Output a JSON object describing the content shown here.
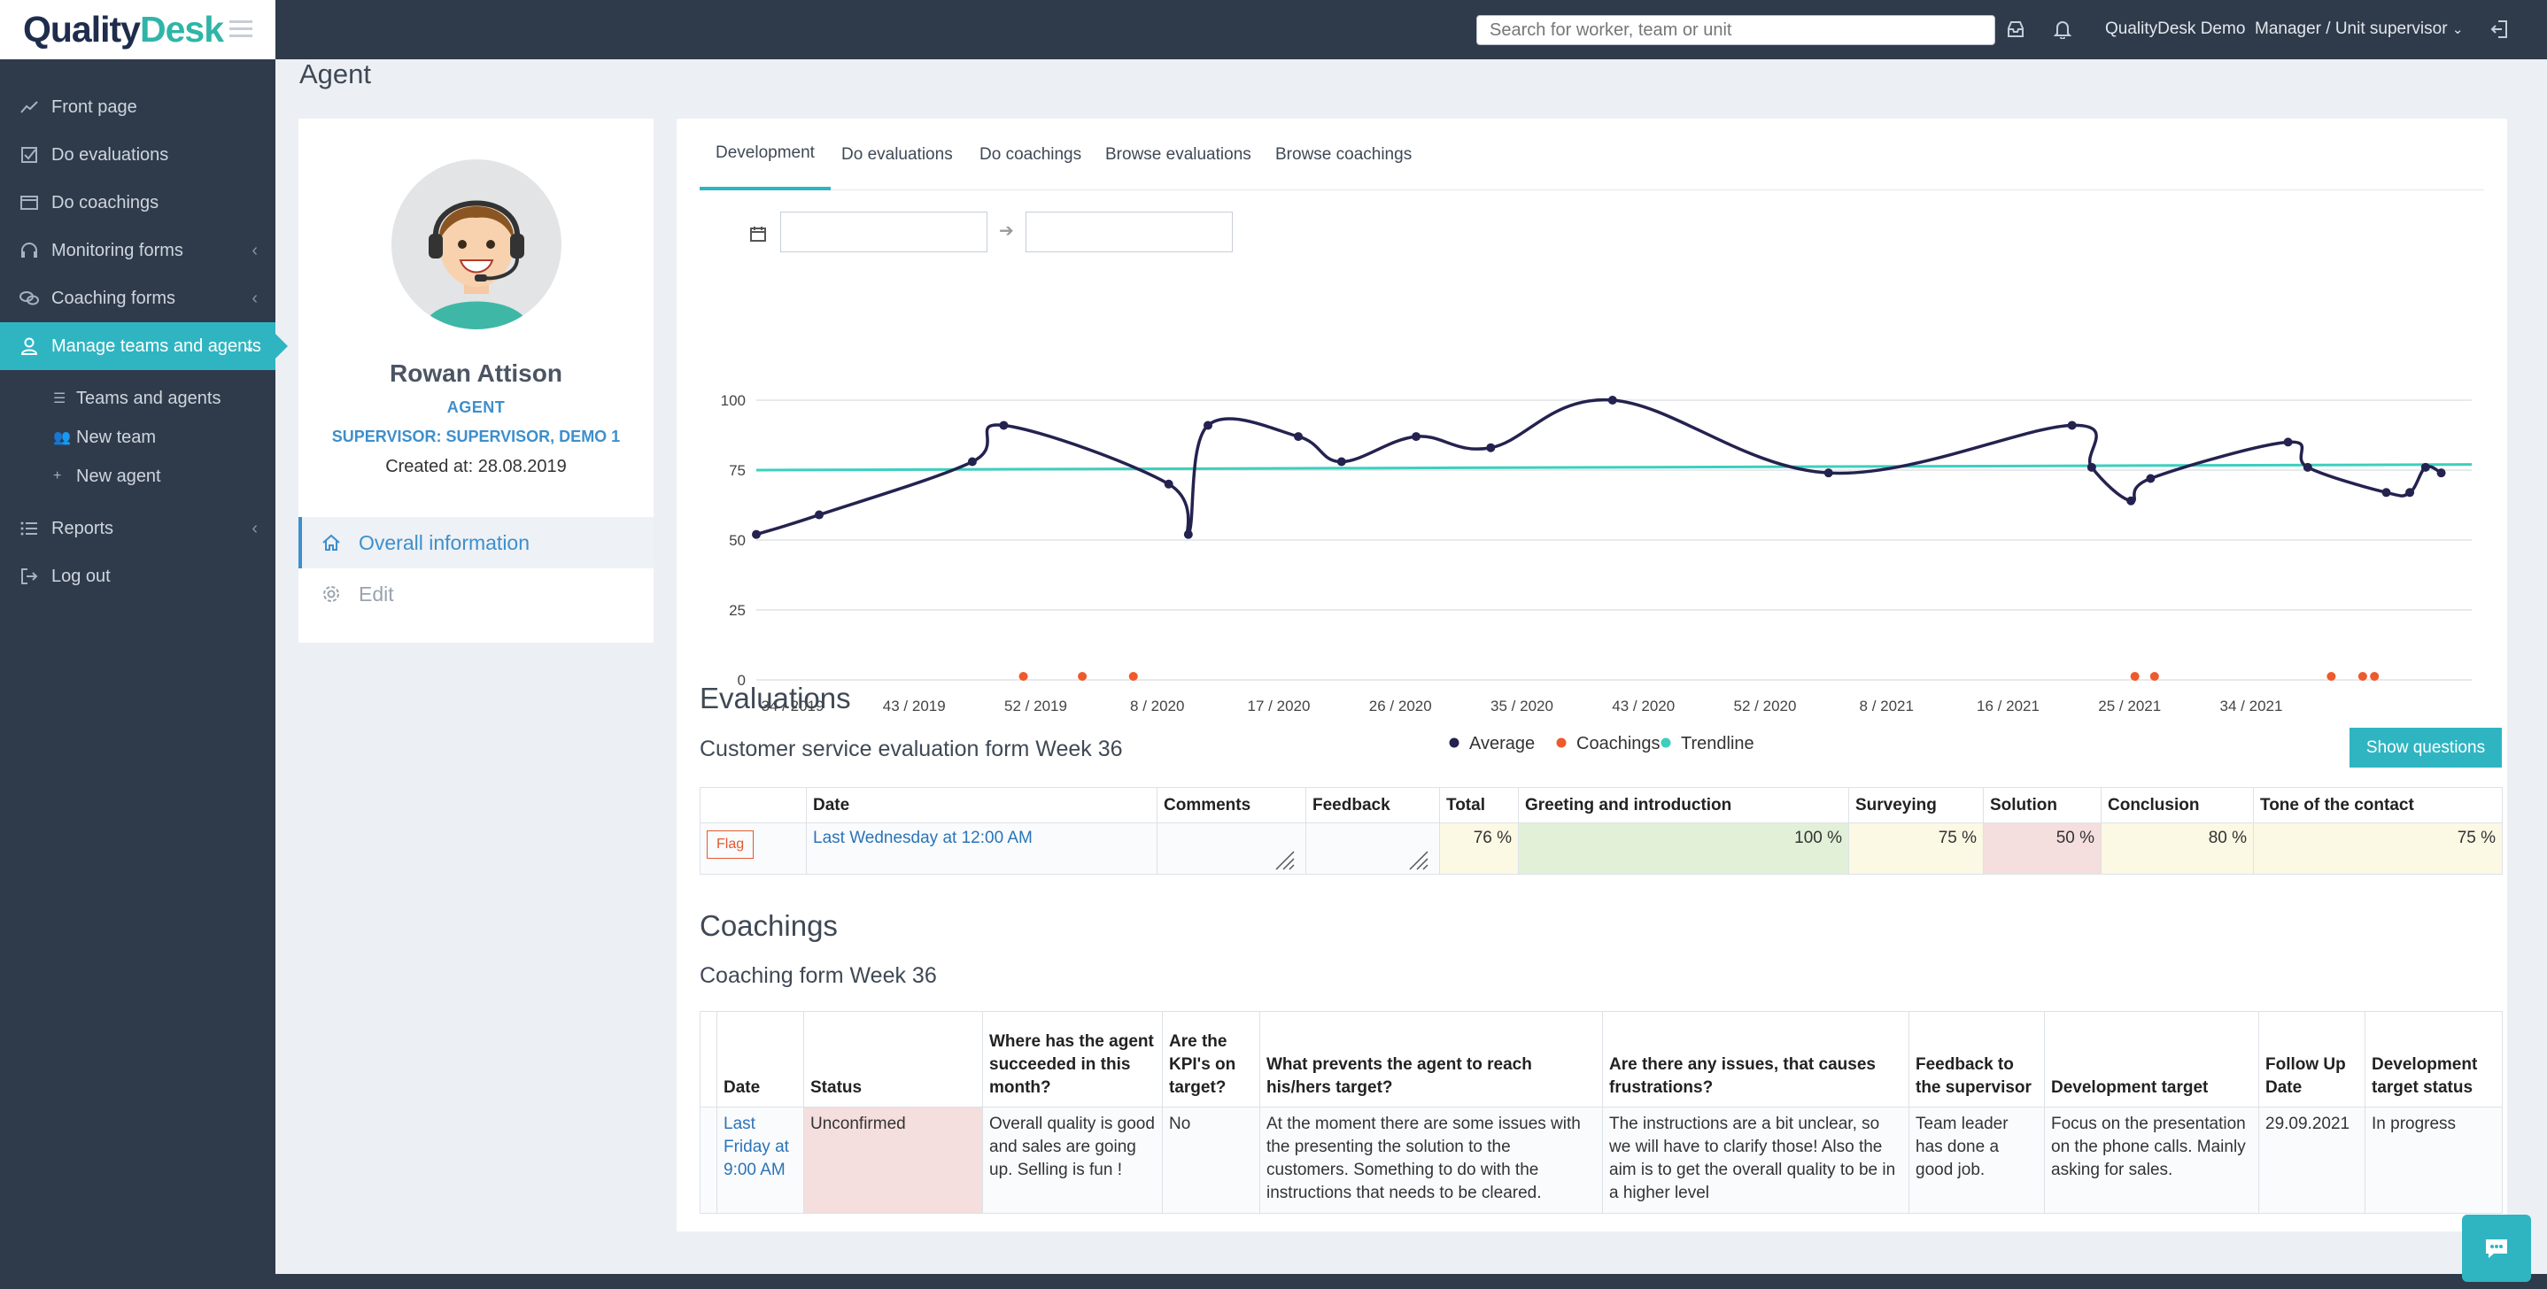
{
  "app": {
    "logo_quality": "Quality",
    "logo_desk": "Desk"
  },
  "topbar": {
    "search_placeholder": "Search for worker, team or unit",
    "org": "QualityDesk Demo",
    "role": "Manager / Unit supervisor"
  },
  "sidebar": {
    "items": [
      {
        "label": "Front page",
        "icon": "chart-line-icon"
      },
      {
        "label": "Do evaluations",
        "icon": "checkbox-icon"
      },
      {
        "label": "Do coachings",
        "icon": "window-icon"
      },
      {
        "label": "Monitoring forms",
        "icon": "headset-icon"
      },
      {
        "label": "Coaching forms",
        "icon": "chat-bubbles-icon"
      },
      {
        "label": "Manage teams and agents",
        "icon": "user-icon",
        "active": true
      },
      {
        "label": "Reports",
        "icon": "list-icon"
      },
      {
        "label": "Log out",
        "icon": "logout-icon"
      }
    ],
    "sub_items": [
      {
        "label": "Teams and agents"
      },
      {
        "label": "New team"
      },
      {
        "label": "New agent"
      }
    ]
  },
  "page": {
    "title": "Agent"
  },
  "profile": {
    "name": "Rowan Attison",
    "role": "AGENT",
    "supervisor": "SUPERVISOR: SUPERVISOR, DEMO 1",
    "created": "Created at: 28.08.2019",
    "menu": {
      "overview": "Overall information",
      "edit": "Edit"
    }
  },
  "tabs": [
    "Development",
    "Do evaluations",
    "Do coachings",
    "Browse evaluations",
    "Browse coachings"
  ],
  "chart_data": {
    "type": "line",
    "x_tick_labels": [
      "34 / 2019",
      "43 / 2019",
      "52 / 2019",
      "8 / 2020",
      "17 / 2020",
      "26 / 2020",
      "35 / 2020",
      "43 / 2020",
      "52 / 2020",
      "8 / 2021",
      "16 / 2021",
      "25 / 2021",
      "34 / 2021"
    ],
    "y_ticks": [
      0,
      25,
      50,
      75,
      100
    ],
    "ylim": [
      0,
      100
    ],
    "legend": [
      "Average",
      "Coachings",
      "Trendline"
    ],
    "legend_position": "bottom",
    "colors": {
      "Average": "#24224f",
      "Coachings": "#f0592a",
      "Trendline": "#3ccfbe"
    },
    "series": [
      {
        "name": "Average",
        "points": [
          [
            34.0,
            52
          ],
          [
            35.6,
            59
          ],
          [
            39.5,
            78
          ],
          [
            40.3,
            91
          ],
          [
            44.5,
            70
          ],
          [
            45.0,
            52
          ],
          [
            45.5,
            91
          ],
          [
            47.8,
            87
          ],
          [
            48.9,
            78
          ],
          [
            50.8,
            87
          ],
          [
            52.7,
            83
          ],
          [
            55.8,
            100
          ],
          [
            61.3,
            74
          ],
          [
            67.5,
            91
          ],
          [
            68.0,
            76
          ],
          [
            69.0,
            64
          ],
          [
            69.5,
            72
          ],
          [
            73.0,
            85
          ],
          [
            73.5,
            76
          ],
          [
            75.5,
            67
          ],
          [
            76.1,
            67
          ],
          [
            76.5,
            76
          ],
          [
            76.9,
            74
          ]
        ]
      },
      {
        "name": "Coachings",
        "points": [
          [
            40.8,
            0
          ],
          [
            42.3,
            0
          ],
          [
            43.6,
            0
          ],
          [
            69.1,
            0
          ],
          [
            69.6,
            0
          ],
          [
            74.1,
            0
          ],
          [
            74.9,
            0
          ],
          [
            75.2,
            0
          ]
        ]
      },
      {
        "name": "Trendline",
        "points": [
          [
            34.0,
            75
          ],
          [
            77.0,
            77
          ]
        ]
      }
    ],
    "grid": true
  },
  "evaluations": {
    "heading": "Evaluations",
    "form_title": "Customer service evaluation form Week 36",
    "show_questions": "Show questions",
    "columns": [
      "",
      "Date",
      "Comments",
      "Feedback",
      "Total",
      "Greeting and introduction",
      "Surveying",
      "Solution",
      "Conclusion",
      "Tone of the contact"
    ],
    "row": {
      "flag": "Flag",
      "date": "Last Wednesday at 12:00 AM",
      "comments": "",
      "feedback": "",
      "total": "76 %",
      "greeting": "100 %",
      "surveying": "75 %",
      "solution": "50 %",
      "conclusion": "80 %",
      "tone": "75 %"
    }
  },
  "coachings": {
    "heading": "Coachings",
    "form_title": "Coaching form Week 36",
    "columns": [
      "",
      "Date",
      "Status",
      "Where has the agent succeeded in this month?",
      "Are the KPI's on target?",
      "What prevents the agent to reach his/hers target?",
      "Are there any issues, that causes frustrations?",
      "Feedback to the supervisor",
      "Development target",
      "Follow Up Date",
      "Development target status"
    ],
    "row": {
      "date": "Last Friday at 9:00 AM",
      "status": "Unconfirmed",
      "succeeded": "Overall quality is good and sales are going up. Selling is fun !",
      "kpi": "No",
      "prevents": "At the moment there are some issues with the presenting the solution to the customers. Something to do with the instructions that needs to be cleared.",
      "issues": "The instructions are a bit unclear, so we will have to clarify those! Also the aim is to get the overall quality to be in a higher level",
      "feedback": "Team leader has done a good job.",
      "target": "Focus on the presentation on the phone calls. Mainly asking for sales.",
      "followup": "29.09.2021",
      "target_status": "In progress"
    }
  }
}
